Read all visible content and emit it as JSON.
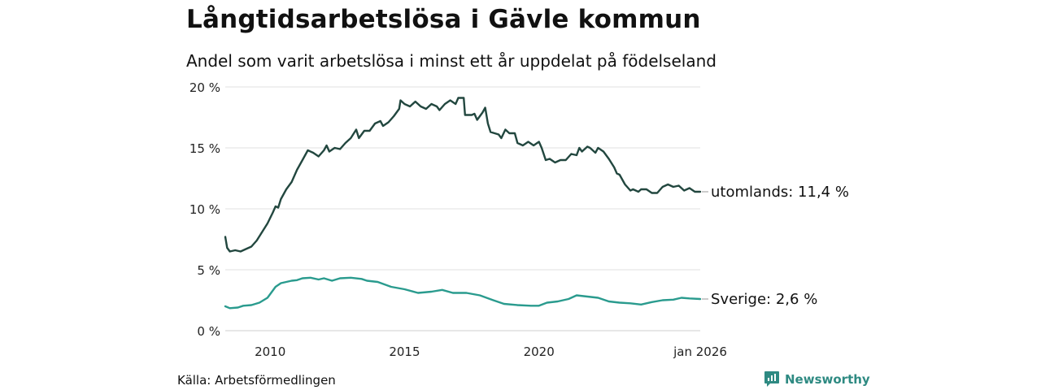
{
  "title": "Långtidsarbetslösa i Gävle kommun",
  "subtitle": "Andel som varit arbetslösa i minst ett år uppdelat på födelseland",
  "source": "Källa: Arbetsförmedlingen",
  "brand": {
    "name": "Newsworthy",
    "icon": "newsworthy-logo-icon",
    "color": "#2e8a82"
  },
  "chart_data": {
    "type": "line",
    "title": "Långtidsarbetslösa i Gävle kommun",
    "subtitle": "Andel som varit arbetslösa i minst ett år uppdelat på födelseland",
    "xlabel": "",
    "ylabel": "",
    "x_range": [
      2008.33,
      2026.0
    ],
    "ylim": [
      0,
      20
    ],
    "y_ticks": [
      0,
      5,
      10,
      15,
      20
    ],
    "y_tick_labels": [
      "0 %",
      "5 %",
      "10 %",
      "15 %",
      "20 %"
    ],
    "x_ticks": [
      2010,
      2015,
      2020,
      2026.0
    ],
    "x_tick_labels": [
      "2010",
      "2015",
      "2020",
      "jan 2026"
    ],
    "grid": true,
    "series": [
      {
        "name": "utomlands",
        "end_label": "utomlands: 11,4 %",
        "color": "#22473f",
        "points": [
          [
            2008.33,
            7.7
          ],
          [
            2008.4,
            6.8
          ],
          [
            2008.5,
            6.5
          ],
          [
            2008.7,
            6.6
          ],
          [
            2008.9,
            6.5
          ],
          [
            2009.1,
            6.7
          ],
          [
            2009.3,
            6.9
          ],
          [
            2009.5,
            7.4
          ],
          [
            2009.7,
            8.1
          ],
          [
            2009.9,
            8.8
          ],
          [
            2010.1,
            9.7
          ],
          [
            2010.2,
            10.2
          ],
          [
            2010.3,
            10.1
          ],
          [
            2010.4,
            10.8
          ],
          [
            2010.6,
            11.6
          ],
          [
            2010.8,
            12.2
          ],
          [
            2011.0,
            13.2
          ],
          [
            2011.2,
            14.0
          ],
          [
            2011.4,
            14.8
          ],
          [
            2011.6,
            14.6
          ],
          [
            2011.8,
            14.3
          ],
          [
            2012.0,
            14.8
          ],
          [
            2012.1,
            15.2
          ],
          [
            2012.2,
            14.7
          ],
          [
            2012.4,
            15.0
          ],
          [
            2012.6,
            14.9
          ],
          [
            2012.8,
            15.4
          ],
          [
            2013.0,
            15.8
          ],
          [
            2013.2,
            16.5
          ],
          [
            2013.3,
            15.8
          ],
          [
            2013.5,
            16.4
          ],
          [
            2013.7,
            16.4
          ],
          [
            2013.9,
            17.0
          ],
          [
            2014.1,
            17.2
          ],
          [
            2014.2,
            16.8
          ],
          [
            2014.4,
            17.1
          ],
          [
            2014.6,
            17.6
          ],
          [
            2014.8,
            18.2
          ],
          [
            2014.85,
            18.9
          ],
          [
            2015.0,
            18.6
          ],
          [
            2015.2,
            18.4
          ],
          [
            2015.4,
            18.8
          ],
          [
            2015.6,
            18.4
          ],
          [
            2015.8,
            18.2
          ],
          [
            2016.0,
            18.6
          ],
          [
            2016.2,
            18.4
          ],
          [
            2016.3,
            18.1
          ],
          [
            2016.5,
            18.6
          ],
          [
            2016.7,
            18.9
          ],
          [
            2016.9,
            18.6
          ],
          [
            2017.0,
            19.1
          ],
          [
            2017.2,
            19.1
          ],
          [
            2017.25,
            17.7
          ],
          [
            2017.5,
            17.7
          ],
          [
            2017.6,
            17.8
          ],
          [
            2017.7,
            17.3
          ],
          [
            2017.9,
            17.9
          ],
          [
            2018.0,
            18.3
          ],
          [
            2018.1,
            17.0
          ],
          [
            2018.2,
            16.3
          ],
          [
            2018.5,
            16.1
          ],
          [
            2018.6,
            15.8
          ],
          [
            2018.75,
            16.5
          ],
          [
            2018.9,
            16.2
          ],
          [
            2019.1,
            16.2
          ],
          [
            2019.2,
            15.4
          ],
          [
            2019.4,
            15.2
          ],
          [
            2019.6,
            15.5
          ],
          [
            2019.8,
            15.2
          ],
          [
            2020.0,
            15.5
          ],
          [
            2020.1,
            15.0
          ],
          [
            2020.25,
            14.0
          ],
          [
            2020.4,
            14.1
          ],
          [
            2020.6,
            13.8
          ],
          [
            2020.8,
            14.0
          ],
          [
            2021.0,
            14.0
          ],
          [
            2021.2,
            14.5
          ],
          [
            2021.4,
            14.4
          ],
          [
            2021.5,
            15.0
          ],
          [
            2021.6,
            14.7
          ],
          [
            2021.8,
            15.1
          ],
          [
            2021.9,
            15.0
          ],
          [
            2022.1,
            14.6
          ],
          [
            2022.2,
            15.0
          ],
          [
            2022.4,
            14.7
          ],
          [
            2022.6,
            14.1
          ],
          [
            2022.8,
            13.4
          ],
          [
            2022.9,
            12.9
          ],
          [
            2023.0,
            12.8
          ],
          [
            2023.2,
            12.0
          ],
          [
            2023.4,
            11.5
          ],
          [
            2023.5,
            11.6
          ],
          [
            2023.7,
            11.4
          ],
          [
            2023.8,
            11.6
          ],
          [
            2024.0,
            11.6
          ],
          [
            2024.2,
            11.3
          ],
          [
            2024.4,
            11.3
          ],
          [
            2024.6,
            11.8
          ],
          [
            2024.8,
            12.0
          ],
          [
            2025.0,
            11.8
          ],
          [
            2025.2,
            11.9
          ],
          [
            2025.4,
            11.5
          ],
          [
            2025.6,
            11.7
          ],
          [
            2025.8,
            11.4
          ],
          [
            2026.0,
            11.4
          ]
        ]
      },
      {
        "name": "Sverige",
        "end_label": "Sverige:  2,6 %",
        "color": "#2a9b8e",
        "points": [
          [
            2008.33,
            2.0
          ],
          [
            2008.5,
            1.85
          ],
          [
            2008.8,
            1.9
          ],
          [
            2009.0,
            2.05
          ],
          [
            2009.3,
            2.1
          ],
          [
            2009.6,
            2.3
          ],
          [
            2009.9,
            2.7
          ],
          [
            2010.0,
            3.0
          ],
          [
            2010.2,
            3.6
          ],
          [
            2010.4,
            3.9
          ],
          [
            2010.6,
            4.0
          ],
          [
            2010.8,
            4.1
          ],
          [
            2011.0,
            4.15
          ],
          [
            2011.2,
            4.3
          ],
          [
            2011.5,
            4.35
          ],
          [
            2011.8,
            4.2
          ],
          [
            2012.0,
            4.3
          ],
          [
            2012.3,
            4.1
          ],
          [
            2012.6,
            4.3
          ],
          [
            2013.0,
            4.35
          ],
          [
            2013.4,
            4.25
          ],
          [
            2013.6,
            4.1
          ],
          [
            2014.0,
            4.0
          ],
          [
            2014.5,
            3.6
          ],
          [
            2015.0,
            3.4
          ],
          [
            2015.5,
            3.1
          ],
          [
            2016.0,
            3.2
          ],
          [
            2016.4,
            3.35
          ],
          [
            2016.8,
            3.1
          ],
          [
            2017.3,
            3.1
          ],
          [
            2017.8,
            2.9
          ],
          [
            2018.3,
            2.5
          ],
          [
            2018.7,
            2.2
          ],
          [
            2019.2,
            2.1
          ],
          [
            2019.7,
            2.05
          ],
          [
            2020.0,
            2.05
          ],
          [
            2020.3,
            2.3
          ],
          [
            2020.7,
            2.4
          ],
          [
            2021.1,
            2.6
          ],
          [
            2021.4,
            2.9
          ],
          [
            2021.8,
            2.8
          ],
          [
            2022.2,
            2.7
          ],
          [
            2022.6,
            2.4
          ],
          [
            2023.0,
            2.3
          ],
          [
            2023.4,
            2.25
          ],
          [
            2023.8,
            2.15
          ],
          [
            2024.2,
            2.35
          ],
          [
            2024.6,
            2.5
          ],
          [
            2025.0,
            2.55
          ],
          [
            2025.3,
            2.7
          ],
          [
            2025.6,
            2.65
          ],
          [
            2026.0,
            2.6
          ]
        ]
      }
    ]
  }
}
